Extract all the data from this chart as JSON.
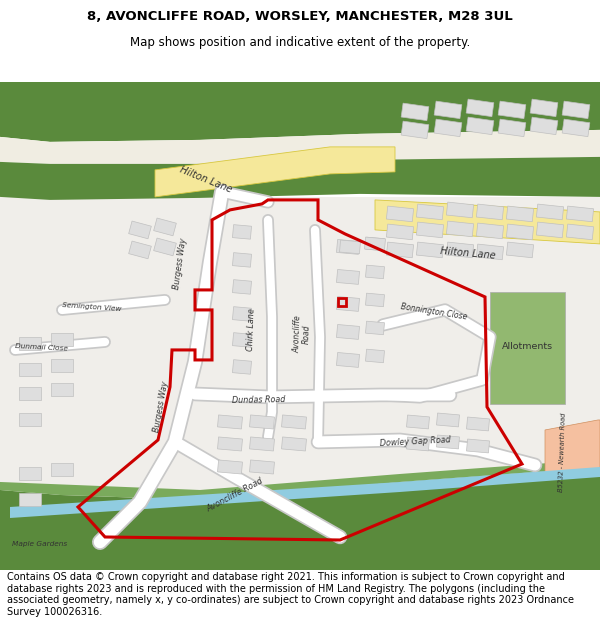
{
  "title_line1": "8, AVONCLIFFE ROAD, WORSLEY, MANCHESTER, M28 3UL",
  "title_line2": "Map shows position and indicative extent of the property.",
  "footer_text": "Contains OS data © Crown copyright and database right 2021. This information is subject to Crown copyright and database rights 2023 and is reproduced with the permission of HM Land Registry. The polygons (including the associated geometry, namely x, y co-ordinates) are subject to Crown copyright and database rights 2023 Ordnance Survey 100026316.",
  "map_bg": "#f0eeea",
  "green_dark": "#5a8a3c",
  "green_mid": "#7aaa5c",
  "green_allot": "#92b870",
  "road_yellow": "#f5e89a",
  "road_yellow_edge": "#d8c840",
  "road_white": "#ffffff",
  "road_edge": "#cccccc",
  "water_blue": "#90cce0",
  "building_fill": "#dedede",
  "building_edge": "#c0c0c0",
  "red_color": "#cc0000",
  "white_bg": "#ffffff",
  "text_color": "#333333",
  "title_fs": 9.5,
  "subtitle_fs": 8.5,
  "footer_fs": 7.0,
  "road_label_fs": 6.5,
  "small_label_fs": 5.8
}
